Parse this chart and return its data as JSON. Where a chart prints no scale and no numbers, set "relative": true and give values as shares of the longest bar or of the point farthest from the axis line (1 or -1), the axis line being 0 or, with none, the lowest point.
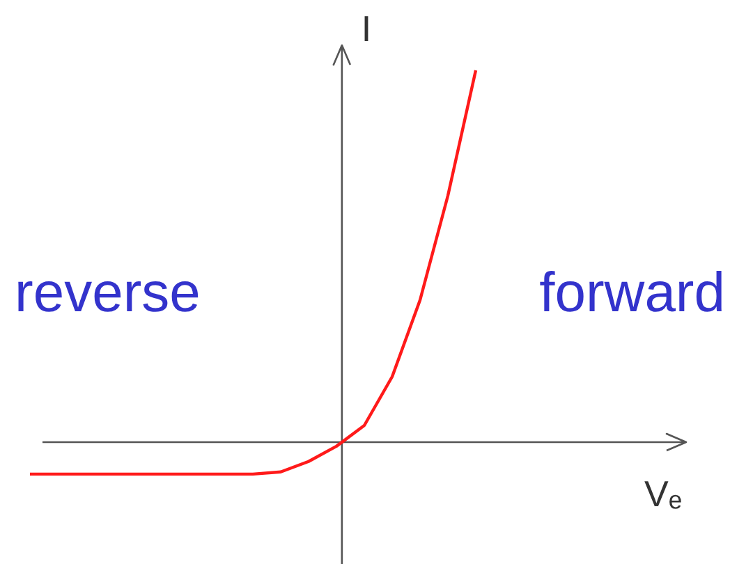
{
  "chart_data": {
    "type": "line",
    "relative": true,
    "xlabel": "Vₑ",
    "ylabel": "I",
    "categories": [
      null,
      null,
      null,
      null,
      null,
      null,
      null,
      null,
      null,
      null,
      null,
      null,
      null,
      null,
      null,
      null,
      null
    ],
    "series": [
      {
        "color": "#ff1a1a",
        "values": [
          -0.086,
          -0.086,
          -0.086,
          -0.086,
          -0.086,
          -0.086,
          -0.086,
          -0.086,
          -0.086,
          -0.08,
          -0.052,
          -0.011,
          0.045,
          0.176,
          0.382,
          0.663,
          1
        ]
      }
    ],
    "annotations": [
      "reverse",
      "forward"
    ],
    "grid": false,
    "marker": "none",
    "line_style": "solid"
  }
}
